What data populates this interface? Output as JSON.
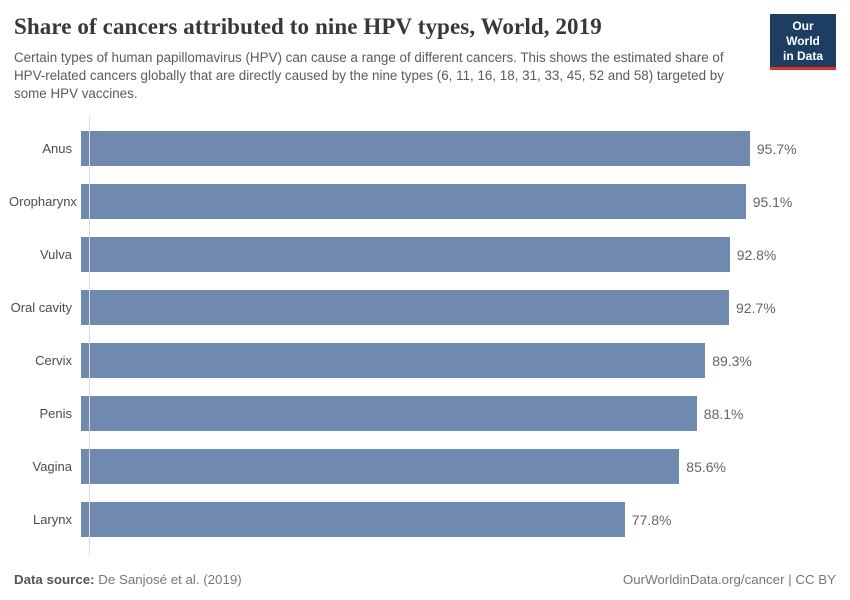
{
  "header": {
    "title": "Share of cancers attributed to nine HPV types, World, 2019",
    "subtitle": "Certain types of human papillomavirus (HPV) can cause a range of different cancers. This shows the estimated share of HPV-related cancers globally that are directly caused by the nine types (6, 11, 16, 18, 31, 33, 45, 52 and 58) targeted by some HPV vaccines.",
    "logo": {
      "line1": "Our World",
      "line2": "in Data",
      "bg_color": "#1d3d63",
      "accent_color": "#d9352c"
    }
  },
  "chart_data": {
    "type": "bar",
    "orientation": "horizontal",
    "title": "Share of cancers attributed to nine HPV types, World, 2019",
    "xlabel": "",
    "ylabel": "",
    "unit": "%",
    "xlim": [
      0,
      100
    ],
    "grid": false,
    "bar_color": "#7089ae",
    "categories": [
      "Anus",
      "Oropharynx",
      "Vulva",
      "Oral cavity",
      "Cervix",
      "Penis",
      "Vagina",
      "Larynx"
    ],
    "values": [
      95.7,
      95.1,
      92.8,
      92.7,
      89.3,
      88.1,
      85.6,
      77.8
    ],
    "value_labels": [
      "95.7%",
      "95.1%",
      "92.8%",
      "92.7%",
      "89.3%",
      "88.1%",
      "85.6%",
      "77.8%"
    ]
  },
  "footer": {
    "datasource_label": "Data source:",
    "datasource_value": "De Sanjosé et al. (2019)",
    "right_text": "OurWorldinData.org/cancer | CC BY"
  }
}
